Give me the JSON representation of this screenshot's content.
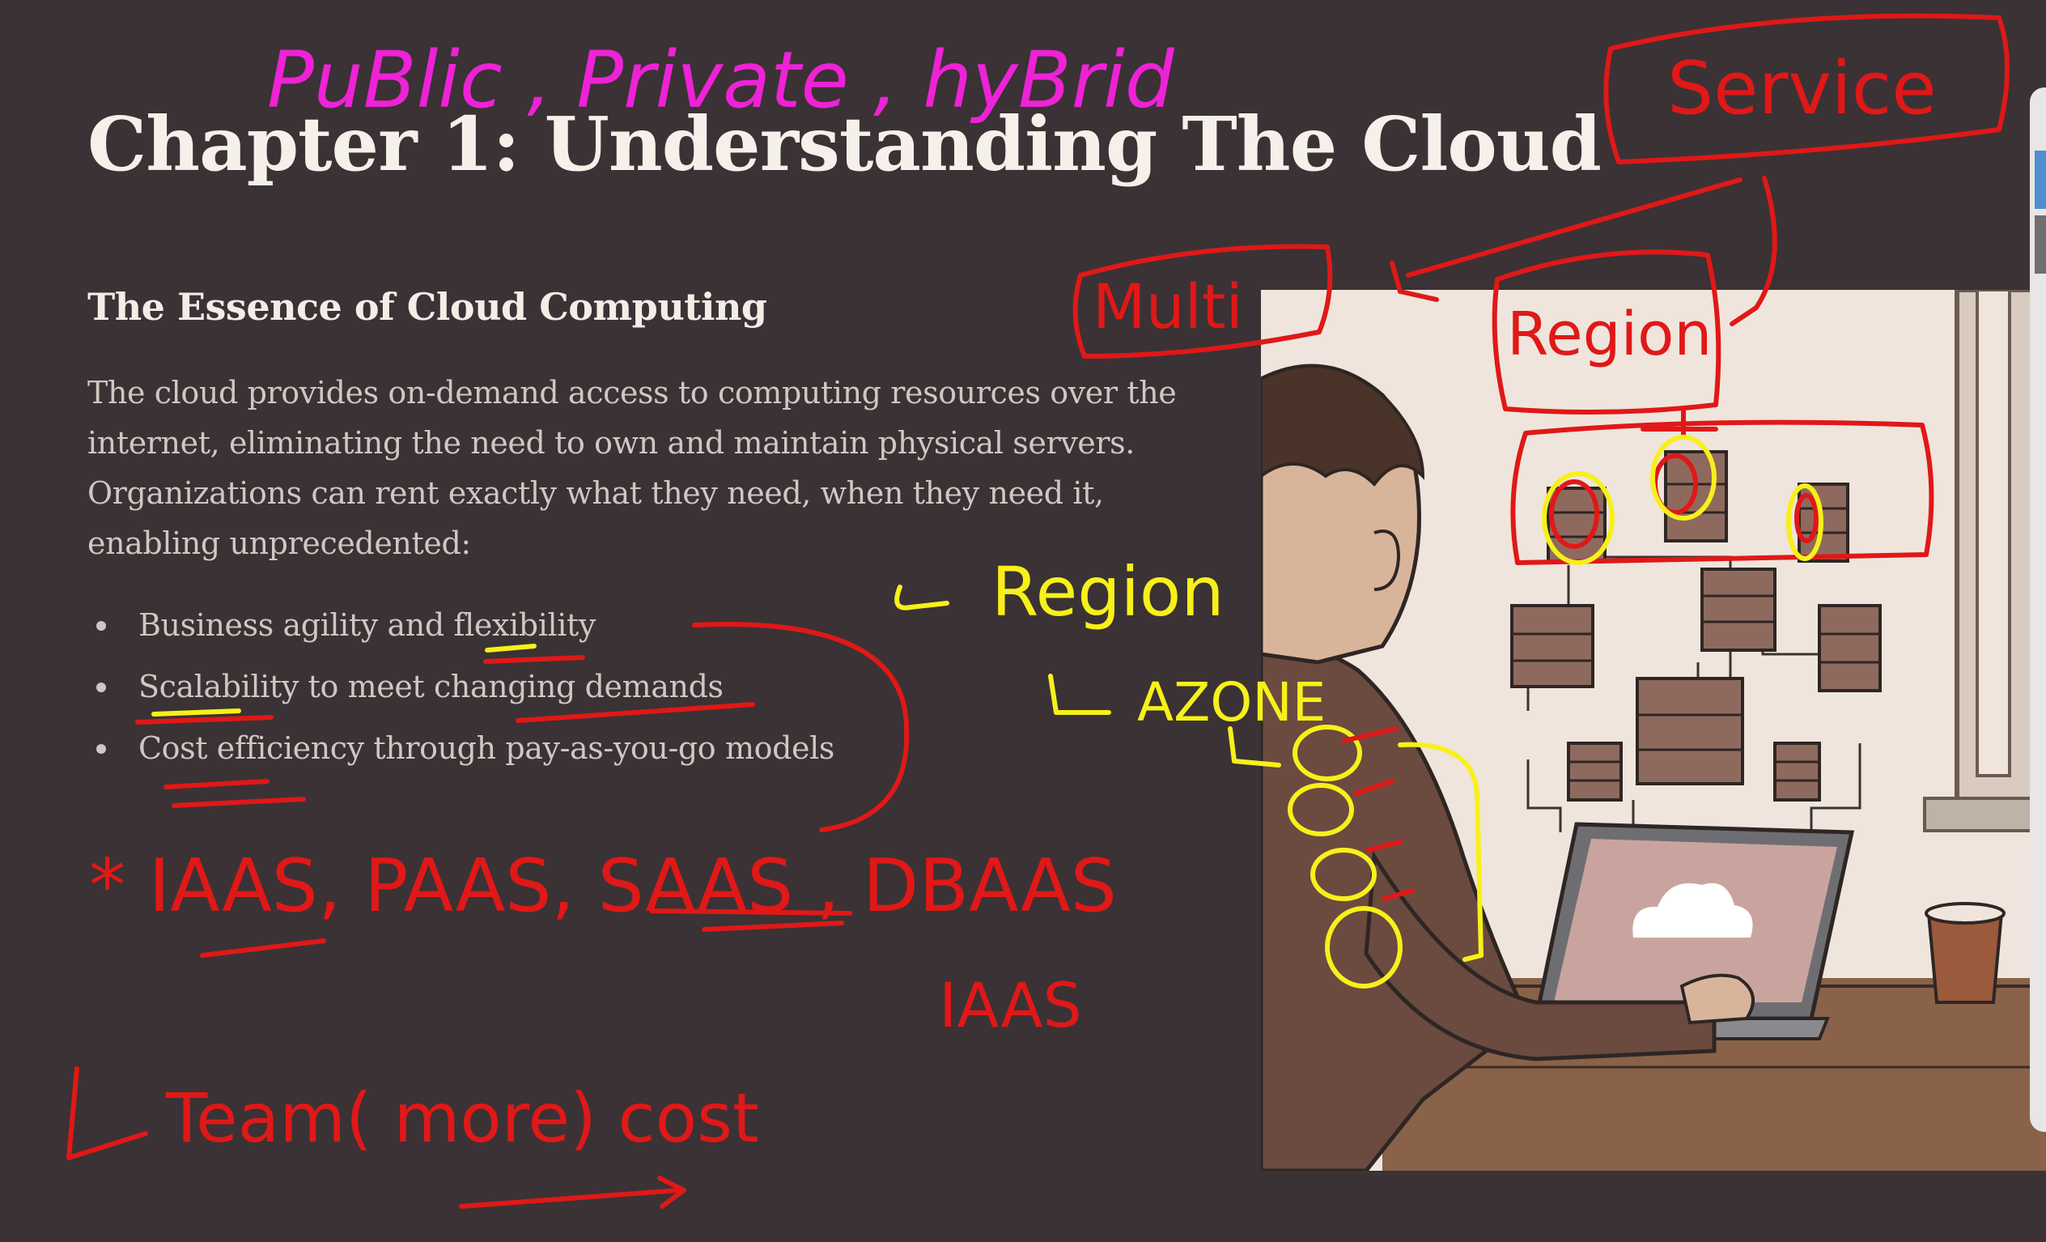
{
  "slide": {
    "title": "Chapter 1: Understanding The Cloud",
    "heading": "The Essence of Cloud Computing",
    "paragraph": "The cloud provides on-demand access to computing resources over the internet, eliminating the need to own and maintain physical servers. Organizations can rent exactly what they need, when they need it, enabling unprecedented:",
    "bullets": [
      "Business agility and flexibility",
      "Scalability to meet changing demands",
      "Cost efficiency through pay-as-you-go models"
    ]
  },
  "annotations": {
    "magenta_note": "PuBlic , Private , hyBrid",
    "service": "Service",
    "multi": "Multi",
    "region_box": "Region",
    "region_yellow": "Region",
    "azone": "AZONE",
    "services_list": "* IAAS, PAAS, SAAS , DBAAS",
    "iaas": "IAAS",
    "team_note": "Team( more) cost"
  },
  "colors": {
    "background": "#3a3234",
    "title": "#f6f0ea",
    "body_text": "#cfc7c1",
    "ink_red": "#e01818",
    "ink_yellow": "#f7f01a",
    "ink_magenta": "#ee22d6"
  }
}
